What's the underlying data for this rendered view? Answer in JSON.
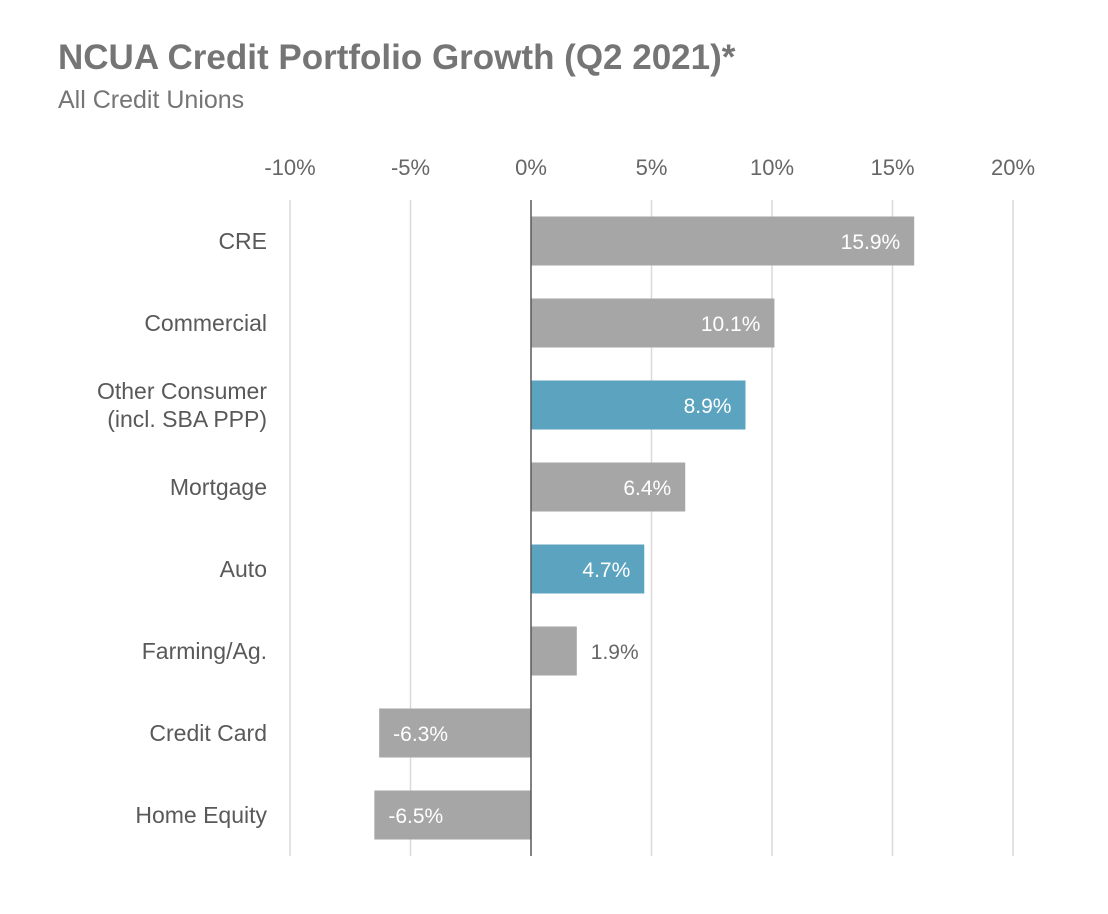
{
  "chart_data": {
    "type": "bar",
    "orientation": "horizontal",
    "title": "NCUA Credit Portfolio Growth (Q2 2021)*",
    "subtitle": "All Credit Unions",
    "xlim": [
      -10,
      20
    ],
    "xticks": [
      -10,
      -5,
      0,
      5,
      10,
      15,
      20
    ],
    "xtick_labels": [
      "-10%",
      "-5%",
      "0%",
      "5%",
      "10%",
      "15%",
      "20%"
    ],
    "grid": true,
    "categories": [
      [
        "CRE"
      ],
      [
        "Commercial"
      ],
      [
        "Other Consumer",
        "(incl. SBA PPP)"
      ],
      [
        "Mortgage"
      ],
      [
        "Auto"
      ],
      [
        "Farming/Ag."
      ],
      [
        "Credit Card"
      ],
      [
        "Home Equity"
      ]
    ],
    "values": [
      15.9,
      10.1,
      8.9,
      6.4,
      4.7,
      1.9,
      -6.3,
      -6.5
    ],
    "value_labels": [
      "15.9%",
      "10.1%",
      "8.9%",
      "6.4%",
      "4.7%",
      "1.9%",
      "-6.3%",
      "-6.5%"
    ],
    "highlighted": [
      false,
      false,
      true,
      false,
      true,
      false,
      false,
      false
    ],
    "colors": {
      "default": "#a6a6a6",
      "highlight": "#5ba3bf",
      "grid": "#d9d9d9",
      "axis": "#595959"
    }
  }
}
